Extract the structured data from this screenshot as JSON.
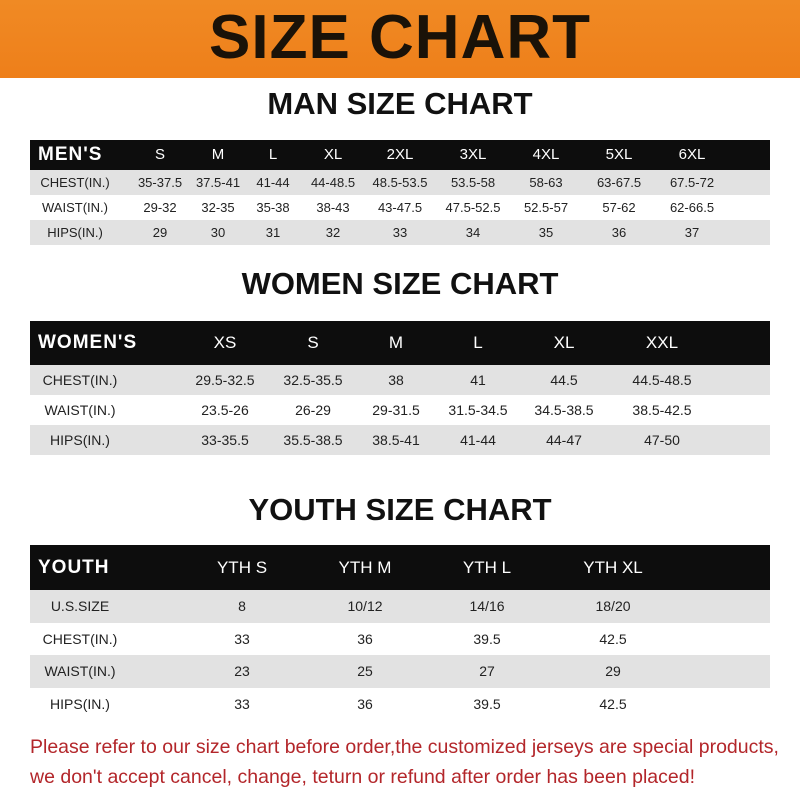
{
  "banner": {
    "title": "SIZE CHART",
    "color": "#f08a24"
  },
  "men": {
    "title": "MAN SIZE CHART",
    "header": [
      "MEN'S",
      "S",
      "M",
      "L",
      "XL",
      "2XL",
      "3XL",
      "4XL",
      "5XL",
      "6XL"
    ],
    "rows": [
      [
        "CHEST(IN.)",
        "35-37.5",
        "37.5-41",
        "41-44",
        "44-48.5",
        "48.5-53.5",
        "53.5-58",
        "58-63",
        "63-67.5",
        "67.5-72"
      ],
      [
        "WAIST(IN.)",
        "29-32",
        "32-35",
        "35-38",
        "38-43",
        "43-47.5",
        "47.5-52.5",
        "52.5-57",
        "57-62",
        "62-66.5"
      ],
      [
        "HIPS(IN.)",
        "29",
        "30",
        "31",
        "32",
        "33",
        "34",
        "35",
        "36",
        "37"
      ]
    ]
  },
  "women": {
    "title": "WOMEN SIZE CHART",
    "header": [
      "WOMEN'S",
      "XS",
      "S",
      "M",
      "L",
      "XL",
      "XXL"
    ],
    "rows": [
      [
        "CHEST(IN.)",
        "29.5-32.5",
        "32.5-35.5",
        "38",
        "41",
        "44.5",
        "44.5-48.5"
      ],
      [
        "WAIST(IN.)",
        "23.5-26",
        "26-29",
        "29-31.5",
        "31.5-34.5",
        "34.5-38.5",
        "38.5-42.5"
      ],
      [
        "HIPS(IN.)",
        "33-35.5",
        "35.5-38.5",
        "38.5-41",
        "41-44",
        "44-47",
        "47-50"
      ]
    ]
  },
  "youth": {
    "title": "YOUTH SIZE CHART",
    "header": [
      "YOUTH",
      "YTH S",
      "YTH M",
      "YTH L",
      "YTH XL"
    ],
    "rows": [
      [
        "U.S.SIZE",
        "8",
        "10/12",
        "14/16",
        "18/20"
      ],
      [
        "CHEST(IN.)",
        "33",
        "36",
        "39.5",
        "42.5"
      ],
      [
        "WAIST(IN.)",
        "23",
        "25",
        "27",
        "29"
      ],
      [
        "HIPS(IN.)",
        "33",
        "36",
        "39.5",
        "42.5"
      ]
    ]
  },
  "notice": {
    "line1": "Please refer to our size chart before order,the customized jerseys are special products,",
    "line2": "we don't accept cancel, change, teturn or refund after order has been placed!",
    "color": "#b3262a"
  }
}
